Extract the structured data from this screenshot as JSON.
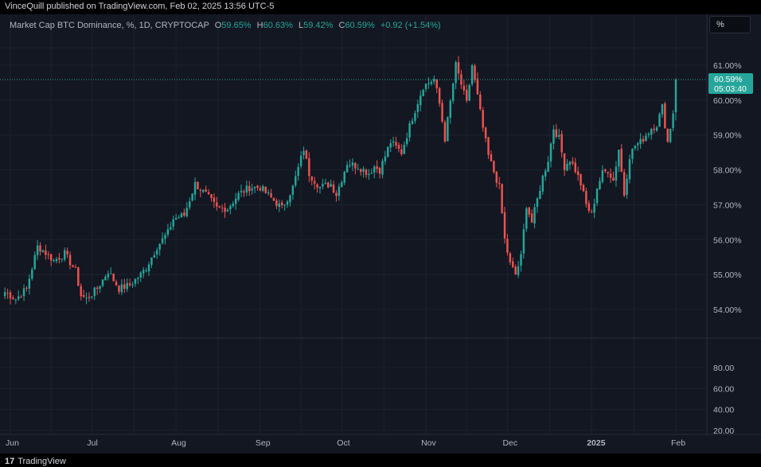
{
  "header": {
    "published_text": "VinceQuill published on TradingView.com, Feb 02, 2025 13:56 UTC-5"
  },
  "legend": {
    "title": "Market Cap BTC Dominance, %, 1D, CRYPTOCAP",
    "o_key": "O",
    "o_val": "59.65%",
    "h_key": "H",
    "h_val": "60.63%",
    "l_key": "L",
    "l_val": "59.42%",
    "c_key": "C",
    "c_val": "60.59%",
    "change": "+0.92 (+1.54%)"
  },
  "scale_button": "%",
  "last_price": {
    "value": "60.59%",
    "countdown": "05:03:40"
  },
  "footer": {
    "brand": "TradingView"
  },
  "colors": {
    "up": "#26a69a",
    "down": "#ef5350",
    "background": "#131722",
    "grid": "#1e222d"
  },
  "chart_data": {
    "type": "candlestick",
    "title": "Market Cap BTC Dominance, %, 1D, CRYPTOCAP",
    "y_axis_labels": [
      "61.00%",
      "60.00%",
      "59.00%",
      "58.00%",
      "57.00%",
      "56.00%",
      "55.00%",
      "54.00%"
    ],
    "y_values": [
      61,
      60,
      59,
      58,
      57,
      56,
      55,
      54
    ],
    "ylim": [
      53.2,
      61.9
    ],
    "x_axis_labels": [
      "Jun",
      "Jul",
      "Aug",
      "Sep",
      "Oct",
      "Nov",
      "Dec",
      "2025",
      "Feb"
    ],
    "x_day_index": [
      0,
      30,
      61,
      92,
      122,
      153,
      183,
      214,
      245
    ],
    "lower_pane_labels": [
      "80.00",
      "60.00",
      "40.00",
      "20.00"
    ],
    "lower_pane_values": [
      80,
      60,
      40,
      20
    ],
    "series": [
      {
        "name": "BTC Dominance",
        "anchors_close": [
          [
            -2,
            54.5
          ],
          [
            2,
            54.3
          ],
          [
            6,
            54.6
          ],
          [
            10,
            55.8
          ],
          [
            12,
            55.7
          ],
          [
            16,
            55.4
          ],
          [
            20,
            55.6
          ],
          [
            24,
            55.1
          ],
          [
            26,
            54.4
          ],
          [
            28,
            54.3
          ],
          [
            32,
            54.6
          ],
          [
            36,
            55.1
          ],
          [
            40,
            54.6
          ],
          [
            44,
            54.7
          ],
          [
            48,
            55.0
          ],
          [
            50,
            55.2
          ],
          [
            54,
            55.8
          ],
          [
            58,
            56.2
          ],
          [
            60,
            56.6
          ],
          [
            64,
            56.7
          ],
          [
            68,
            57.6
          ],
          [
            72,
            57.3
          ],
          [
            76,
            56.9
          ],
          [
            80,
            56.9
          ],
          [
            84,
            57.3
          ],
          [
            88,
            57.5
          ],
          [
            92,
            57.5
          ],
          [
            96,
            57.2
          ],
          [
            100,
            56.9
          ],
          [
            104,
            57.5
          ],
          [
            108,
            58.6
          ],
          [
            110,
            57.9
          ],
          [
            114,
            57.5
          ],
          [
            118,
            57.6
          ],
          [
            120,
            57.3
          ],
          [
            124,
            58.2
          ],
          [
            128,
            58.1
          ],
          [
            132,
            57.9
          ],
          [
            134,
            58.1
          ],
          [
            136,
            58.0
          ],
          [
            140,
            58.8
          ],
          [
            144,
            58.5
          ],
          [
            148,
            59.5
          ],
          [
            152,
            60.4
          ],
          [
            156,
            60.6
          ],
          [
            158,
            59.9
          ],
          [
            160,
            58.9
          ],
          [
            164,
            61.0
          ],
          [
            168,
            59.9
          ],
          [
            170,
            61.0
          ],
          [
            174,
            59.2
          ],
          [
            176,
            58.4
          ],
          [
            180,
            57.5
          ],
          [
            182,
            56.0
          ],
          [
            184,
            55.3
          ],
          [
            186,
            55.0
          ],
          [
            188,
            55.5
          ],
          [
            190,
            57.0
          ],
          [
            192,
            56.5
          ],
          [
            196,
            57.8
          ],
          [
            198,
            58.3
          ],
          [
            200,
            59.2
          ],
          [
            202,
            58.9
          ],
          [
            204,
            58.1
          ],
          [
            206,
            58.3
          ],
          [
            208,
            58.0
          ],
          [
            210,
            57.6
          ],
          [
            212,
            57.0
          ],
          [
            214,
            56.7
          ],
          [
            216,
            57.5
          ],
          [
            218,
            57.9
          ],
          [
            220,
            58.0
          ],
          [
            222,
            57.7
          ],
          [
            224,
            58.6
          ],
          [
            226,
            57.3
          ],
          [
            228,
            58.4
          ],
          [
            230,
            58.7
          ],
          [
            232,
            58.8
          ],
          [
            236,
            59.2
          ],
          [
            238,
            59.3
          ],
          [
            240,
            59.8
          ],
          [
            242,
            58.8
          ],
          [
            244,
            59.65
          ],
          [
            245,
            60.59
          ]
        ],
        "last_candle": {
          "open": 59.65,
          "high": 60.63,
          "low": 59.42,
          "close": 60.59
        }
      }
    ],
    "grid": true
  }
}
